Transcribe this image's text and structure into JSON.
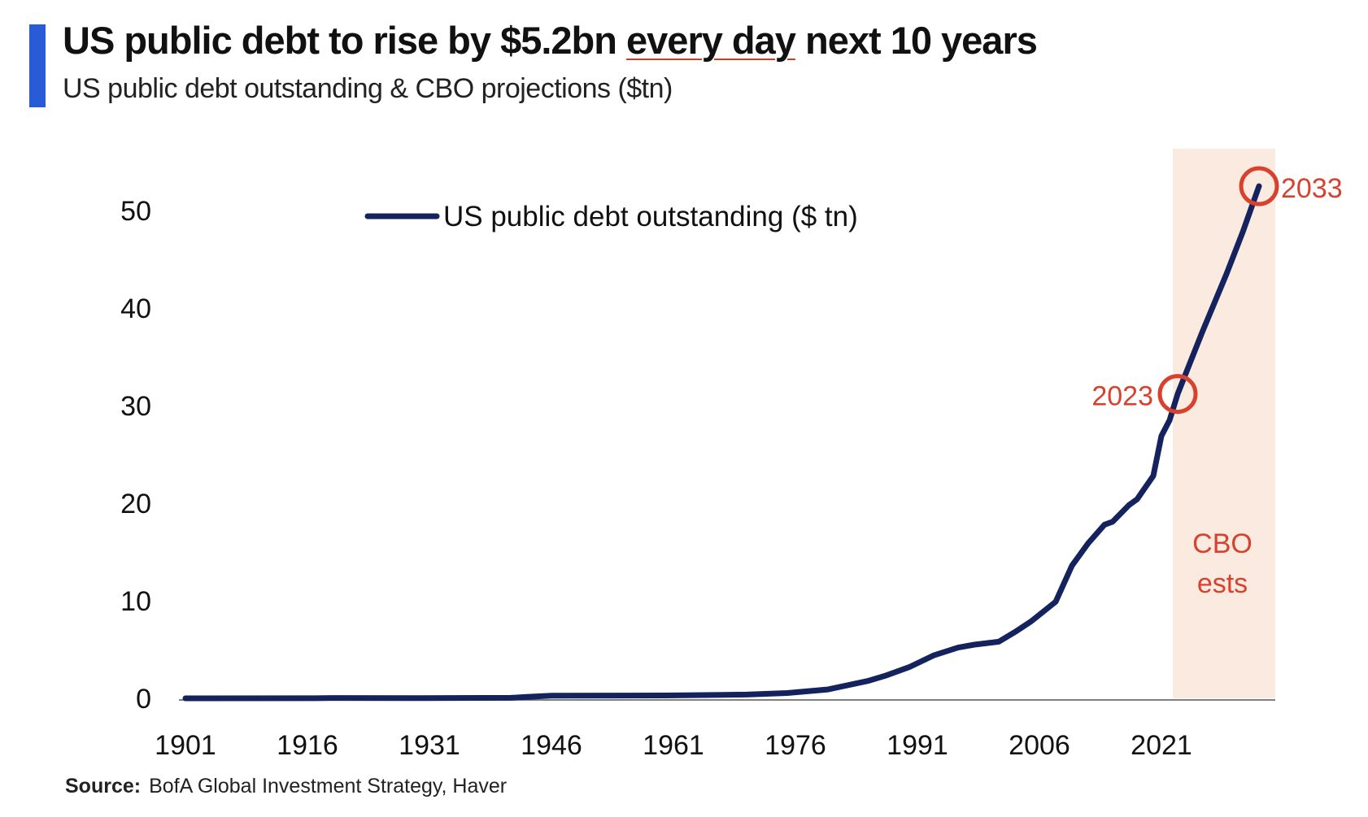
{
  "header": {
    "title_prefix": "US public debt to rise by $5.2bn ",
    "title_emphasis": "every day",
    "title_suffix": " next 10 years",
    "subtitle": "US public debt outstanding & CBO projections ($tn)"
  },
  "source": {
    "label": "Source:",
    "text": "BofA Global Investment Strategy, Haver"
  },
  "colors": {
    "accent": "#2a5bd7",
    "line": "#14235e",
    "annotation": "#d9412f",
    "projection_band": "#fbeae0"
  },
  "chart_data": {
    "type": "line",
    "title": "US public debt to rise by $5.2bn every day next 10 years",
    "subtitle": "US public debt outstanding & CBO projections ($tn)",
    "xlabel": "",
    "ylabel": "",
    "xlim": [
      1901,
      2033
    ],
    "ylim": [
      0,
      55
    ],
    "x_ticks": [
      1901,
      1916,
      1931,
      1946,
      1961,
      1976,
      1991,
      2006,
      2021
    ],
    "y_ticks": [
      0,
      10,
      20,
      30,
      40,
      50
    ],
    "grid": false,
    "legend": {
      "position": "top-center",
      "entries": [
        "US public debt outstanding ($ tn)"
      ]
    },
    "series": [
      {
        "name": "US public debt outstanding ($ tn)",
        "x": [
          1901,
          1917,
          1919,
          1930,
          1941,
          1943,
          1946,
          1960,
          1970,
          1975,
          1980,
          1985,
          1987,
          1990,
          1993,
          1996,
          1998,
          2001,
          2003,
          2005,
          2008,
          2010,
          2012,
          2014,
          2015,
          2017,
          2018,
          2020,
          2021,
          2022,
          2023,
          2026,
          2029,
          2031,
          2033
        ],
        "values": [
          0,
          0.01,
          0.03,
          0.02,
          0.05,
          0.14,
          0.27,
          0.29,
          0.38,
          0.54,
          0.91,
          1.8,
          2.3,
          3.2,
          4.4,
          5.2,
          5.5,
          5.8,
          6.8,
          7.9,
          9.9,
          13.6,
          15.9,
          17.8,
          18.1,
          19.8,
          20.4,
          22.8,
          26.9,
          28.5,
          31.2,
          37.5,
          43.5,
          47.8,
          52.5
        ]
      }
    ],
    "projection_band": {
      "from": 2022,
      "to": 2033,
      "label_lines": [
        "CBO",
        "ests"
      ]
    },
    "annotations": [
      {
        "x": 2023,
        "y": 31.2,
        "label": "2023"
      },
      {
        "x": 2033,
        "y": 52.5,
        "label": "2033"
      }
    ]
  }
}
